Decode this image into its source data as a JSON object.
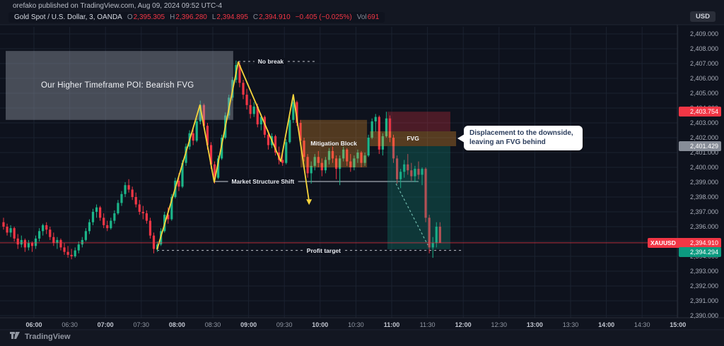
{
  "app": {
    "watermark": "orefako published on TradingView.com, Aug 09, 2024 09:52 UTC-4",
    "brand": "TradingView",
    "currency_chip": "USD"
  },
  "legend": {
    "symbol": "Gold Spot / U.S. Dollar, 3, OANDA",
    "o_label": "O",
    "o": "2,395.305",
    "h_label": "H",
    "h": "2,396.280",
    "l_label": "L",
    "l": "2,394.895",
    "c_label": "C",
    "c": "2,394.910",
    "change": "−0.405 (−0.025%)",
    "vol_label": "Vol",
    "vol": "691"
  },
  "callout": {
    "line1": "Displacement to the downside,",
    "line2": "leaving an FVG behind"
  },
  "axes": {
    "price_ticks": [
      "2,409.000",
      "2,408.000",
      "2,407.000",
      "2,406.000",
      "2,405.000",
      "2,404.000",
      "2,403.000",
      "2,402.000",
      "2,401.000",
      "2,400.000",
      "2,399.000",
      "2,398.000",
      "2,397.000",
      "2,396.000",
      "2,395.000",
      "2,394.000",
      "2,393.000",
      "2,392.000",
      "2,391.000",
      "2,390.000"
    ],
    "time_ticks": [
      "06:00",
      "06:30",
      "07:00",
      "07:30",
      "08:00",
      "08:30",
      "09:00",
      "09:30",
      "10:00",
      "10:30",
      "11:00",
      "11:30",
      "12:00",
      "12:30",
      "13:00",
      "13:30",
      "14:00",
      "14:30",
      "15:00"
    ]
  },
  "price_tags": [
    {
      "name": "supply-high-tag",
      "text": "2,403.754",
      "price": 2403.754,
      "bg": "#f23645",
      "fg": "#ffffff"
    },
    {
      "name": "fvg-low-tag",
      "text": "2,401.429",
      "price": 2401.429,
      "bg": "#878d98",
      "fg": "#ffffff"
    },
    {
      "name": "last-price-tag",
      "symbol": "XAUUSD",
      "text": "2,394.910",
      "price": 2394.91,
      "bg": "#f23645",
      "fg": "#ffffff",
      "wide": true
    },
    {
      "name": "target-tag",
      "text": "2,394.294",
      "price": 2394.294,
      "bg": "#0c9b80",
      "fg": "#ffffff"
    }
  ],
  "chart_data": {
    "type": "candlestick",
    "symbol": "XAUUSD",
    "interval_minutes": 3,
    "price_axis": {
      "min": 2390,
      "max": 2409,
      "step": 1,
      "grid": true
    },
    "time_axis": {
      "start": "06:00",
      "end": "15:00",
      "step_minutes": 30,
      "grid": true
    },
    "colors": {
      "up": "#1cb589",
      "down": "#f23645",
      "zigzag": "#f6d43c",
      "grid": "#1b2230",
      "last_price": "#f23645"
    },
    "candles": [
      [
        2396.3,
        2396.6,
        2395.8,
        2396.0
      ],
      [
        2396.0,
        2396.2,
        2395.4,
        2395.6
      ],
      [
        2395.6,
        2396.1,
        2395.3,
        2395.9
      ],
      [
        2395.9,
        2396.0,
        2395.0,
        2395.2
      ],
      [
        2395.2,
        2395.5,
        2394.5,
        2394.8
      ],
      [
        2394.8,
        2395.4,
        2394.6,
        2395.1
      ],
      [
        2395.1,
        2395.2,
        2394.3,
        2394.6
      ],
      [
        2394.6,
        2395.1,
        2394.4,
        2394.9
      ],
      [
        2394.9,
        2395.0,
        2394.3,
        2394.7
      ],
      [
        2394.7,
        2395.4,
        2394.5,
        2395.2
      ],
      [
        2395.2,
        2395.9,
        2395.0,
        2395.7
      ],
      [
        2395.7,
        2396.2,
        2395.4,
        2396.1
      ],
      [
        2396.1,
        2396.3,
        2395.5,
        2395.8
      ],
      [
        2395.8,
        2396.0,
        2395.1,
        2395.3
      ],
      [
        2395.3,
        2395.6,
        2394.7,
        2394.9
      ],
      [
        2394.9,
        2395.3,
        2394.5,
        2395.1
      ],
      [
        2395.1,
        2395.2,
        2394.4,
        2394.6
      ],
      [
        2394.6,
        2394.9,
        2394.1,
        2394.3
      ],
      [
        2394.3,
        2394.7,
        2393.9,
        2394.1
      ],
      [
        2394.1,
        2394.5,
        2393.8,
        2394.0
      ],
      [
        2394.0,
        2394.6,
        2393.9,
        2394.4
      ],
      [
        2394.4,
        2395.0,
        2394.2,
        2394.8
      ],
      [
        2394.8,
        2395.3,
        2394.6,
        2395.1
      ],
      [
        2395.1,
        2395.9,
        2395.0,
        2395.7
      ],
      [
        2395.7,
        2396.5,
        2395.5,
        2396.3
      ],
      [
        2396.3,
        2397.2,
        2396.1,
        2397.0
      ],
      [
        2397.0,
        2397.5,
        2396.6,
        2397.3
      ],
      [
        2397.3,
        2397.4,
        2396.4,
        2396.6
      ],
      [
        2396.6,
        2396.9,
        2395.9,
        2396.1
      ],
      [
        2396.1,
        2396.4,
        2395.7,
        2395.9
      ],
      [
        2395.9,
        2396.6,
        2395.8,
        2396.4
      ],
      [
        2396.4,
        2397.1,
        2396.2,
        2396.9
      ],
      [
        2396.9,
        2397.8,
        2396.8,
        2397.6
      ],
      [
        2397.6,
        2398.4,
        2397.4,
        2398.2
      ],
      [
        2398.2,
        2399.0,
        2398.0,
        2398.8
      ],
      [
        2398.8,
        2399.2,
        2398.3,
        2398.5
      ],
      [
        2398.5,
        2398.7,
        2397.8,
        2398.0
      ],
      [
        2398.0,
        2398.3,
        2397.3,
        2397.5
      ],
      [
        2397.5,
        2397.8,
        2396.8,
        2397.0
      ],
      [
        2397.0,
        2397.4,
        2396.5,
        2396.9
      ],
      [
        2396.9,
        2397.1,
        2396.2,
        2396.4
      ],
      [
        2396.4,
        2396.6,
        2395.2,
        2395.4
      ],
      [
        2395.4,
        2395.6,
        2394.2,
        2394.5
      ],
      [
        2394.5,
        2395.0,
        2394.3,
        2394.8
      ],
      [
        2394.8,
        2395.9,
        2394.7,
        2395.7
      ],
      [
        2395.7,
        2397.0,
        2395.6,
        2396.8
      ],
      [
        2396.8,
        2397.3,
        2396.2,
        2396.5
      ],
      [
        2396.5,
        2398.2,
        2396.4,
        2398.0
      ],
      [
        2398.0,
        2399.3,
        2397.9,
        2399.1
      ],
      [
        2399.1,
        2399.6,
        2398.4,
        2398.7
      ],
      [
        2398.7,
        2400.5,
        2398.6,
        2400.3
      ],
      [
        2400.3,
        2401.6,
        2400.1,
        2401.4
      ],
      [
        2401.4,
        2402.5,
        2401.2,
        2402.3
      ],
      [
        2402.3,
        2402.7,
        2401.5,
        2401.8
      ],
      [
        2401.8,
        2403.3,
        2401.7,
        2403.1
      ],
      [
        2403.1,
        2404.5,
        2402.9,
        2404.2
      ],
      [
        2404.2,
        2404.3,
        2402.6,
        2402.8
      ],
      [
        2402.8,
        2403.0,
        2401.2,
        2401.5
      ],
      [
        2401.5,
        2401.7,
        2399.9,
        2400.2
      ],
      [
        2400.2,
        2400.4,
        2398.9,
        2399.3
      ],
      [
        2399.3,
        2400.8,
        2399.2,
        2400.6
      ],
      [
        2400.6,
        2402.2,
        2400.5,
        2402.0
      ],
      [
        2402.0,
        2403.7,
        2401.9,
        2403.5
      ],
      [
        2403.5,
        2404.9,
        2403.3,
        2404.7
      ],
      [
        2404.7,
        2406.1,
        2404.5,
        2405.9
      ],
      [
        2405.9,
        2407.2,
        2405.7,
        2406.9
      ],
      [
        2406.9,
        2407.1,
        2405.4,
        2405.7
      ],
      [
        2405.7,
        2405.9,
        2404.6,
        2404.9
      ],
      [
        2404.9,
        2405.3,
        2403.9,
        2404.2
      ],
      [
        2404.2,
        2404.6,
        2403.3,
        2403.6
      ],
      [
        2403.6,
        2404.4,
        2403.4,
        2404.1
      ],
      [
        2404.1,
        2404.3,
        2402.7,
        2402.9
      ],
      [
        2402.9,
        2403.6,
        2402.5,
        2403.4
      ],
      [
        2403.4,
        2403.5,
        2402.0,
        2402.2
      ],
      [
        2402.2,
        2402.5,
        2401.2,
        2401.5
      ],
      [
        2401.5,
        2402.3,
        2401.3,
        2402.1
      ],
      [
        2402.1,
        2402.2,
        2400.8,
        2401.0
      ],
      [
        2401.0,
        2401.4,
        2400.2,
        2400.5
      ],
      [
        2400.5,
        2401.0,
        2400.1,
        2400.3
      ],
      [
        2400.3,
        2401.9,
        2400.2,
        2401.7
      ],
      [
        2401.7,
        2403.4,
        2401.6,
        2403.2
      ],
      [
        2403.2,
        2404.9,
        2403.0,
        2404.4
      ],
      [
        2404.4,
        2404.5,
        2402.8,
        2403.0
      ],
      [
        2403.0,
        2403.2,
        2401.6,
        2401.8
      ],
      [
        2401.8,
        2402.0,
        2400.4,
        2400.7
      ],
      [
        2400.7,
        2400.9,
        2399.3,
        2399.6
      ],
      [
        2399.6,
        2400.4,
        2398.9,
        2400.1
      ],
      [
        2400.1,
        2400.9,
        2399.8,
        2400.7
      ],
      [
        2400.7,
        2401.1,
        2400.0,
        2400.3
      ],
      [
        2400.3,
        2400.6,
        2399.4,
        2399.8
      ],
      [
        2399.8,
        2400.7,
        2399.6,
        2400.5
      ],
      [
        2400.5,
        2401.3,
        2400.2,
        2401.1
      ],
      [
        2401.1,
        2401.4,
        2400.3,
        2400.6
      ],
      [
        2400.6,
        2400.8,
        2399.2,
        2399.9
      ],
      [
        2399.9,
        2400.8,
        2398.8,
        2400.6
      ],
      [
        2400.6,
        2401.4,
        2400.4,
        2401.2
      ],
      [
        2401.2,
        2401.3,
        2400.1,
        2400.4
      ],
      [
        2400.4,
        2400.9,
        2399.7,
        2400.0
      ],
      [
        2400.0,
        2400.8,
        2399.8,
        2400.6
      ],
      [
        2400.6,
        2401.2,
        2400.3,
        2401.0
      ],
      [
        2401.0,
        2401.1,
        2400.0,
        2400.3
      ],
      [
        2400.3,
        2401.0,
        2400.1,
        2400.8
      ],
      [
        2400.8,
        2402.2,
        2400.7,
        2402.0
      ],
      [
        2402.0,
        2403.3,
        2401.9,
        2403.1
      ],
      [
        2403.1,
        2403.6,
        2402.4,
        2403.4
      ],
      [
        2403.4,
        2403.5,
        2400.9,
        2401.2
      ],
      [
        2401.2,
        2402.3,
        2400.8,
        2402.1
      ],
      [
        2402.1,
        2403.75,
        2402.0,
        2403.3
      ],
      [
        2403.3,
        2403.5,
        2401.7,
        2402.0
      ],
      [
        2402.0,
        2402.2,
        2400.3,
        2400.6
      ],
      [
        2400.6,
        2400.8,
        2398.9,
        2399.2
      ],
      [
        2399.2,
        2399.9,
        2398.6,
        2399.7
      ],
      [
        2399.7,
        2400.5,
        2399.3,
        2400.2
      ],
      [
        2400.2,
        2400.9,
        2399.5,
        2399.8
      ],
      [
        2399.8,
        2400.3,
        2399.1,
        2399.4
      ],
      [
        2399.4,
        2400.1,
        2399.0,
        2399.9
      ],
      [
        2399.9,
        2400.4,
        2399.2,
        2399.5
      ],
      [
        2399.5,
        2400.0,
        2398.8,
        2399.9
      ],
      [
        2399.9,
        2400.0,
        2396.3,
        2396.6
      ],
      [
        2396.6,
        2396.8,
        2394.2,
        2394.6
      ],
      [
        2394.6,
        2395.3,
        2393.9,
        2394.9
      ],
      [
        2394.9,
        2396.3,
        2394.6,
        2396.0
      ],
      [
        2396.0,
        2396.3,
        2394.9,
        2394.9
      ]
    ],
    "annotations": {
      "boxes": [
        {
          "name": "poi-box",
          "label": "Our Higher Timeframe POI: Bearish FVG",
          "i0": 0.6,
          "i1": 64.2,
          "p0": 2407.85,
          "p1": 2403.2,
          "fill": "rgba(150,158,170,0.42)"
        },
        {
          "name": "mitigation-block-box",
          "label": "Mitigation Block",
          "i0": 83.0,
          "i1": 101.6,
          "p0": 2403.2,
          "p1": 2400.0,
          "fill": "rgba(255,158,44,0.28)"
        },
        {
          "name": "supply-box",
          "label": "",
          "i0": 107.3,
          "i1": 124.9,
          "p0": 2403.754,
          "p1": 2402.43,
          "fill": "rgba(204,48,62,0.32)"
        },
        {
          "name": "fvg-box",
          "label": "FVG",
          "i0": 102.4,
          "i1": 126.5,
          "p0": 2402.43,
          "p1": 2401.429,
          "fill": "rgba(255,158,44,0.30)"
        },
        {
          "name": "demand-box",
          "label": "",
          "i0": 107.3,
          "i1": 124.9,
          "p0": 2401.429,
          "p1": 2394.48,
          "fill": "rgba(16,150,130,0.28)"
        }
      ],
      "lines": [
        {
          "name": "no-break-line",
          "label": "No break",
          "price": 2407.14,
          "i0": 65.6,
          "i1": 87.4,
          "label_i": 74.7,
          "style": "dashed",
          "color": "#d6dae2"
        },
        {
          "name": "market-structure-shift-line",
          "label": "Market Structure Shift",
          "price": 2399.05,
          "i0": 58.7,
          "i1": 116.0,
          "label_i": 72.5,
          "style": "solid",
          "color": "#d6dae2"
        },
        {
          "name": "profit-target-line",
          "label": "Profit target",
          "price": 2394.4,
          "i0": 42.9,
          "i1": 128.5,
          "label_i": 89.5,
          "style": "dashed",
          "color": "#d6dae2"
        }
      ],
      "zigzag": {
        "name": "structure-zigzag",
        "color": "#f6d43c",
        "arrow_end": true,
        "points": [
          [
            42.9,
            2394.45
          ],
          [
            54.9,
            2404.2
          ],
          [
            58.9,
            2399.0
          ],
          [
            65.6,
            2407.1
          ],
          [
            77.5,
            2400.4
          ],
          [
            81.0,
            2404.9
          ],
          [
            85.4,
            2397.7
          ]
        ]
      },
      "displacement_dash": {
        "name": "displacement-path",
        "color": "#7fcfc0",
        "points": [
          [
            109.7,
            2398.9
          ],
          [
            118.6,
            2394.76
          ]
        ]
      },
      "last_price_line": {
        "price": 2394.91,
        "color": "#f23645"
      }
    }
  }
}
